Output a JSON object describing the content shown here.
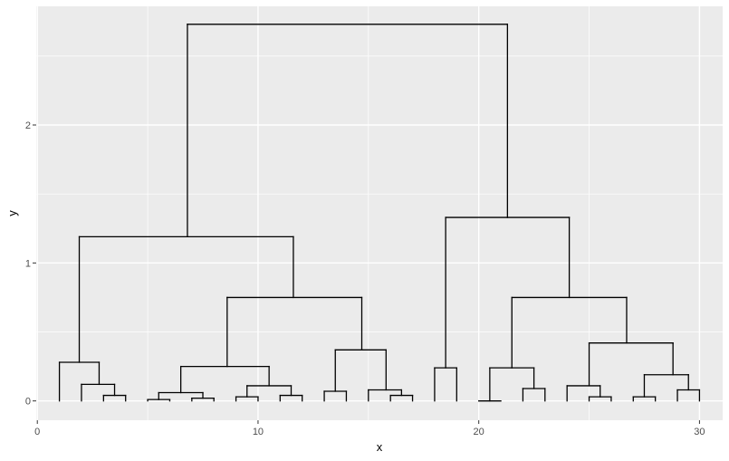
{
  "chart_data": {
    "type": "dendrogram",
    "title": "",
    "xlabel": "x",
    "ylabel": "y",
    "xlim": [
      -0.05,
      31.05
    ],
    "ylim": [
      -0.14,
      2.86
    ],
    "x_ticks": [
      0,
      10,
      20,
      30
    ],
    "y_ticks": [
      0,
      1,
      2
    ],
    "grid": true,
    "background": "#ebebeb",
    "grid_color": "#ffffff",
    "line_color": "#000000",
    "segments": [
      [
        6.8,
        2.73,
        21.3,
        2.73
      ],
      [
        6.8,
        2.73,
        6.8,
        1.19
      ],
      [
        21.3,
        2.73,
        21.3,
        1.33
      ],
      [
        1.9,
        1.19,
        11.6,
        1.19
      ],
      [
        1.9,
        1.19,
        1.9,
        0.28
      ],
      [
        11.6,
        1.19,
        11.6,
        0.75
      ],
      [
        1.0,
        0.28,
        2.8,
        0.28
      ],
      [
        1.0,
        0.28,
        1.0,
        0.0
      ],
      [
        2.8,
        0.28,
        2.8,
        0.12
      ],
      [
        2.0,
        0.12,
        3.5,
        0.12
      ],
      [
        2.0,
        0.12,
        2.0,
        0.0
      ],
      [
        3.5,
        0.12,
        3.5,
        0.04
      ],
      [
        3.0,
        0.04,
        4.0,
        0.04
      ],
      [
        3.0,
        0.04,
        3.0,
        0.0
      ],
      [
        4.0,
        0.04,
        4.0,
        0.0
      ],
      [
        8.6,
        0.75,
        14.7,
        0.75
      ],
      [
        8.6,
        0.75,
        8.6,
        0.25
      ],
      [
        14.7,
        0.75,
        14.7,
        0.37
      ],
      [
        6.5,
        0.25,
        10.5,
        0.25
      ],
      [
        6.5,
        0.25,
        6.5,
        0.06
      ],
      [
        10.5,
        0.25,
        10.5,
        0.11
      ],
      [
        5.5,
        0.06,
        7.5,
        0.06
      ],
      [
        5.5,
        0.06,
        5.5,
        0.01
      ],
      [
        7.5,
        0.06,
        7.5,
        0.02
      ],
      [
        5.0,
        0.01,
        6.0,
        0.01
      ],
      [
        5.0,
        0.01,
        5.0,
        0.0
      ],
      [
        6.0,
        0.01,
        6.0,
        0.0
      ],
      [
        7.0,
        0.02,
        8.0,
        0.02
      ],
      [
        7.0,
        0.02,
        7.0,
        0.0
      ],
      [
        8.0,
        0.02,
        8.0,
        0.0
      ],
      [
        9.5,
        0.11,
        11.5,
        0.11
      ],
      [
        9.5,
        0.11,
        9.5,
        0.03
      ],
      [
        11.5,
        0.11,
        11.5,
        0.04
      ],
      [
        9.0,
        0.03,
        10.0,
        0.03
      ],
      [
        9.0,
        0.03,
        9.0,
        0.0
      ],
      [
        10.0,
        0.03,
        10.0,
        0.0
      ],
      [
        11.0,
        0.04,
        12.0,
        0.04
      ],
      [
        11.0,
        0.04,
        11.0,
        0.0
      ],
      [
        12.0,
        0.04,
        12.0,
        0.0
      ],
      [
        13.5,
        0.37,
        15.8,
        0.37
      ],
      [
        13.5,
        0.37,
        13.5,
        0.07
      ],
      [
        15.8,
        0.37,
        15.8,
        0.08
      ],
      [
        13.0,
        0.07,
        14.0,
        0.07
      ],
      [
        13.0,
        0.07,
        13.0,
        0.0
      ],
      [
        14.0,
        0.07,
        14.0,
        0.0
      ],
      [
        15.0,
        0.08,
        16.5,
        0.08
      ],
      [
        15.0,
        0.08,
        15.0,
        0.0
      ],
      [
        16.5,
        0.08,
        16.5,
        0.04
      ],
      [
        16.0,
        0.04,
        17.0,
        0.04
      ],
      [
        16.0,
        0.04,
        16.0,
        0.0
      ],
      [
        17.0,
        0.04,
        17.0,
        0.0
      ],
      [
        18.5,
        1.33,
        24.1,
        1.33
      ],
      [
        18.5,
        1.33,
        18.5,
        0.24
      ],
      [
        24.1,
        1.33,
        24.1,
        0.75
      ],
      [
        18.0,
        0.24,
        19.0,
        0.24
      ],
      [
        18.0,
        0.24,
        18.0,
        0.0
      ],
      [
        19.0,
        0.24,
        19.0,
        0.0
      ],
      [
        21.5,
        0.75,
        26.7,
        0.75
      ],
      [
        21.5,
        0.75,
        21.5,
        0.24
      ],
      [
        26.7,
        0.75,
        26.7,
        0.42
      ],
      [
        20.5,
        0.24,
        22.5,
        0.24
      ],
      [
        20.5,
        0.24,
        20.5,
        0.0
      ],
      [
        22.5,
        0.24,
        22.5,
        0.09
      ],
      [
        20.0,
        0.0,
        21.0,
        0.0
      ],
      [
        22.0,
        0.09,
        23.0,
        0.09
      ],
      [
        22.0,
        0.09,
        22.0,
        0.0
      ],
      [
        23.0,
        0.09,
        23.0,
        0.0
      ],
      [
        25.0,
        0.42,
        28.8,
        0.42
      ],
      [
        25.0,
        0.42,
        25.0,
        0.11
      ],
      [
        28.8,
        0.42,
        28.8,
        0.19
      ],
      [
        24.0,
        0.11,
        25.5,
        0.11
      ],
      [
        24.0,
        0.11,
        24.0,
        0.0
      ],
      [
        25.5,
        0.11,
        25.5,
        0.03
      ],
      [
        25.0,
        0.03,
        26.0,
        0.03
      ],
      [
        25.0,
        0.03,
        25.0,
        0.0
      ],
      [
        26.0,
        0.03,
        26.0,
        0.0
      ],
      [
        27.5,
        0.19,
        29.5,
        0.19
      ],
      [
        27.5,
        0.19,
        27.5,
        0.03
      ],
      [
        29.5,
        0.19,
        29.5,
        0.08
      ],
      [
        27.0,
        0.03,
        28.0,
        0.03
      ],
      [
        27.0,
        0.03,
        27.0,
        0.0
      ],
      [
        28.0,
        0.03,
        28.0,
        0.0
      ],
      [
        29.0,
        0.08,
        30.0,
        0.08
      ],
      [
        29.0,
        0.08,
        29.0,
        0.0
      ],
      [
        30.0,
        0.08,
        30.0,
        0.0
      ]
    ]
  }
}
